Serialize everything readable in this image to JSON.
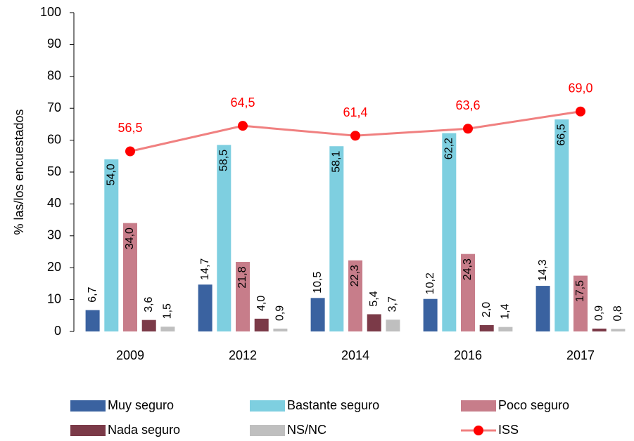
{
  "chart_data": {
    "type": "bar",
    "y_label": "% las/los encuestados",
    "categories": [
      "2009",
      "2012",
      "2014",
      "2016",
      "2017"
    ],
    "series": [
      {
        "name": "Muy seguro",
        "color": "#3a62a0",
        "values": [
          6.7,
          14.7,
          10.5,
          10.2,
          14.3
        ],
        "value_labels": [
          "6,7",
          "14,7",
          "10,5",
          "10,2",
          "14,3"
        ]
      },
      {
        "name": "Bastante seguro",
        "color": "#7ecfe0",
        "values": [
          54.0,
          58.5,
          58.1,
          62.2,
          66.5
        ],
        "value_labels": [
          "54,0",
          "58,5",
          "58,1",
          "62,2",
          "66,5"
        ]
      },
      {
        "name": "Poco seguro",
        "color": "#c77d8a",
        "values": [
          34.0,
          21.8,
          22.3,
          24.3,
          17.5
        ],
        "value_labels": [
          "34,0",
          "21,8",
          "22,3",
          "24,3",
          "17,5"
        ]
      },
      {
        "name": "Nada seguro",
        "color": "#7b3a48",
        "values": [
          3.6,
          4.0,
          5.4,
          2.0,
          0.9
        ],
        "value_labels": [
          "3,6",
          "4,0",
          "5,4",
          "2,0",
          "0,9"
        ]
      },
      {
        "name": "NS/NC",
        "color": "#bfbfbf",
        "values": [
          1.5,
          0.9,
          3.7,
          1.4,
          0.8
        ],
        "value_labels": [
          "1,5",
          "0,9",
          "3,7",
          "1,4",
          "0,8"
        ]
      },
      {
        "name": "ISS",
        "type": "line",
        "color": "#f08080",
        "marker_color": "#ff0000",
        "values": [
          56.5,
          64.5,
          61.4,
          63.6,
          69.0
        ],
        "value_labels": [
          "56,5",
          "64,5",
          "61,4",
          "63,6",
          "69,0"
        ]
      }
    ],
    "ylim": [
      0,
      100
    ],
    "yticks": [
      0,
      10,
      20,
      30,
      40,
      50,
      60,
      70,
      80,
      90,
      100
    ],
    "grid": false
  }
}
